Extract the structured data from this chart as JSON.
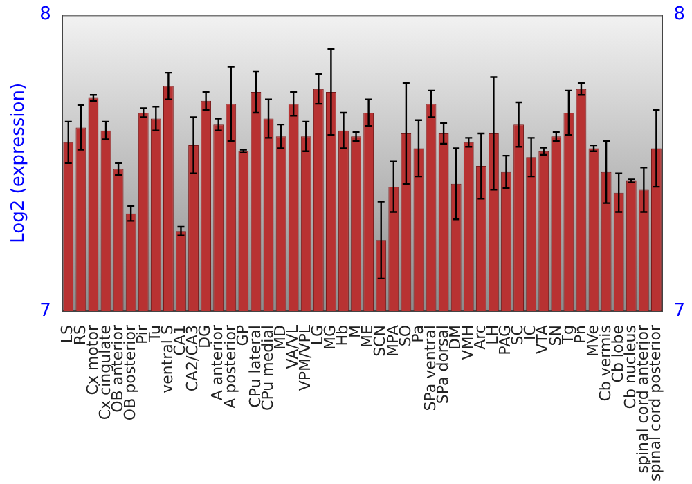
{
  "chart_data": {
    "type": "bar",
    "ylabel": "Log2 (expression)",
    "categories": [
      "LS",
      "RS",
      "Cx motor",
      "Cx cingulate",
      "OB anterior",
      "OB posterior",
      "Pir",
      "Tu",
      "ventral S",
      "CA1",
      "CA2/CA3",
      "DG",
      "A anterior",
      "A posterior",
      "GP",
      "CPu lateral",
      "CPu medial",
      "MD",
      "VA/VL",
      "VPM/VPL",
      "LG",
      "MG",
      "Hb",
      "M",
      "ME",
      "SCN",
      "MPA",
      "SO",
      "Pa",
      "SPa ventral",
      "SPa dorsal",
      "DM",
      "VMH",
      "Arc",
      "LH",
      "PAG",
      "SC",
      "IC",
      "VTA",
      "SN",
      "Tg",
      "Pn",
      "MVe",
      "Cb vermis",
      "Cb lobe",
      "Cb nucleus",
      "spinal cord anterior",
      "spinal cord posterior"
    ],
    "values": [
      7.57,
      7.62,
      7.72,
      7.61,
      7.48,
      7.33,
      7.67,
      7.65,
      7.76,
      7.27,
      7.56,
      7.71,
      7.63,
      7.7,
      7.54,
      7.74,
      7.65,
      7.59,
      7.7,
      7.59,
      7.75,
      7.74,
      7.61,
      7.59,
      7.67,
      7.24,
      7.42,
      7.6,
      7.55,
      7.7,
      7.6,
      7.43,
      7.57,
      7.49,
      7.6,
      7.47,
      7.63,
      7.52,
      7.54,
      7.59,
      7.67,
      7.75,
      7.55,
      7.47,
      7.4,
      7.44,
      7.41,
      7.55
    ],
    "errors": [
      0.07,
      0.075,
      0.01,
      0.03,
      0.02,
      0.025,
      0.015,
      0.04,
      0.045,
      0.015,
      0.095,
      0.03,
      0.02,
      0.125,
      0.005,
      0.07,
      0.065,
      0.04,
      0.04,
      0.05,
      0.05,
      0.145,
      0.06,
      0.015,
      0.045,
      0.13,
      0.085,
      0.17,
      0.095,
      0.045,
      0.035,
      0.12,
      0.015,
      0.11,
      0.19,
      0.055,
      0.075,
      0.065,
      0.012,
      0.015,
      0.075,
      0.02,
      0.01,
      0.105,
      0.065,
      0.005,
      0.075,
      0.13
    ],
    "color": "#b83232",
    "ylim": [
      7,
      8
    ],
    "yticks": [
      7,
      8
    ],
    "y2lim": [
      7,
      8
    ],
    "y2ticks": [
      7,
      8
    ],
    "grid": false
  }
}
